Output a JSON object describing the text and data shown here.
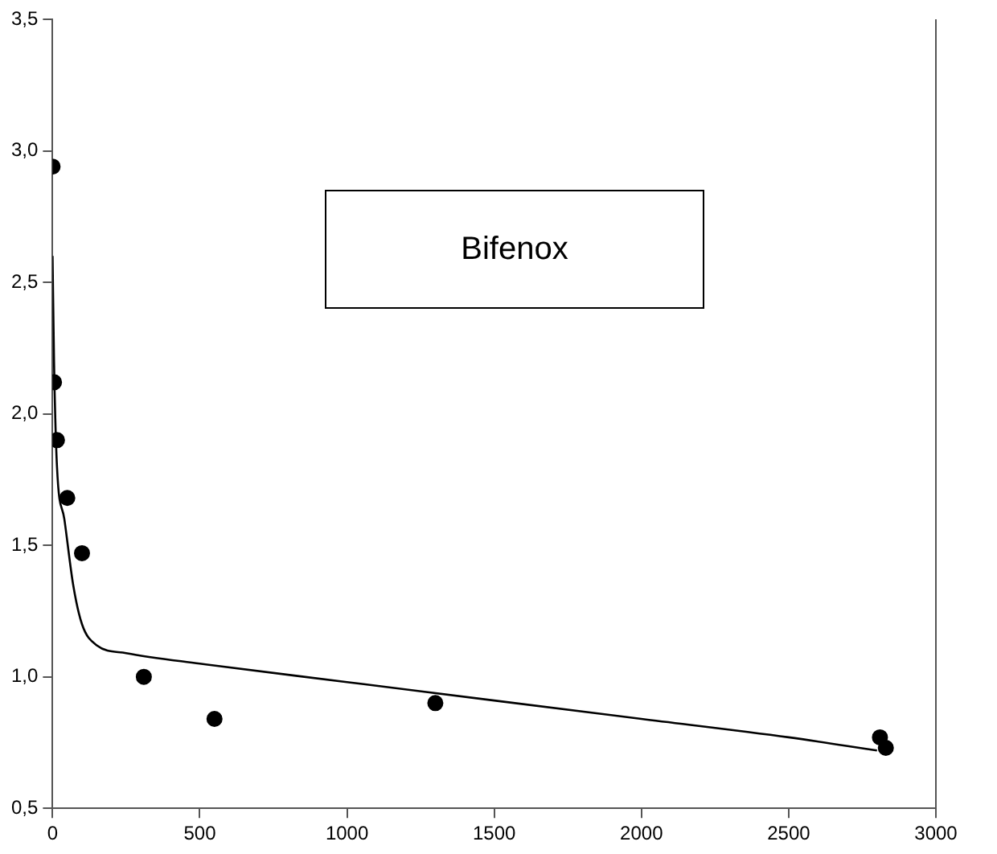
{
  "chart_data": {
    "type": "scatter",
    "annotations": [
      "Bifenox"
    ],
    "series": [
      {
        "color": "#000000",
        "marker": "circle",
        "x": [
          0,
          5,
          15,
          50,
          100,
          310,
          550,
          1300,
          2810,
          2830
        ],
        "values": [
          2.94,
          2.12,
          1.9,
          1.68,
          1.47,
          1.0,
          0.84,
          0.9,
          0.77,
          0.73
        ]
      },
      {
        "type": "line",
        "color": "#000000",
        "marker": "none",
        "x": [
          0,
          5,
          15,
          40,
          70,
          100,
          150,
          250,
          500,
          1000,
          1500,
          2000,
          2500,
          2800
        ],
        "values": [
          2.6,
          2.2,
          1.8,
          1.6,
          1.35,
          1.2,
          1.12,
          1.09,
          1.05,
          0.98,
          0.91,
          0.84,
          0.77,
          0.72
        ]
      }
    ],
    "xlim": [
      0,
      3000
    ],
    "xticks": [
      0,
      500,
      1000,
      1500,
      2000,
      2500,
      3000
    ],
    "ylim": [
      0.5,
      3.5
    ],
    "yticks": [
      {
        "value": 0.5,
        "label": "0,5"
      },
      {
        "value": 1.0,
        "label": "1,0"
      },
      {
        "value": 1.5,
        "label": "1,5"
      },
      {
        "value": 2.0,
        "label": "2,0"
      },
      {
        "value": 2.5,
        "label": "2,5"
      },
      {
        "value": 3.0,
        "label": "3,0"
      },
      {
        "value": 3.5,
        "label": "3,5"
      }
    ],
    "grid": false,
    "legend": false
  }
}
